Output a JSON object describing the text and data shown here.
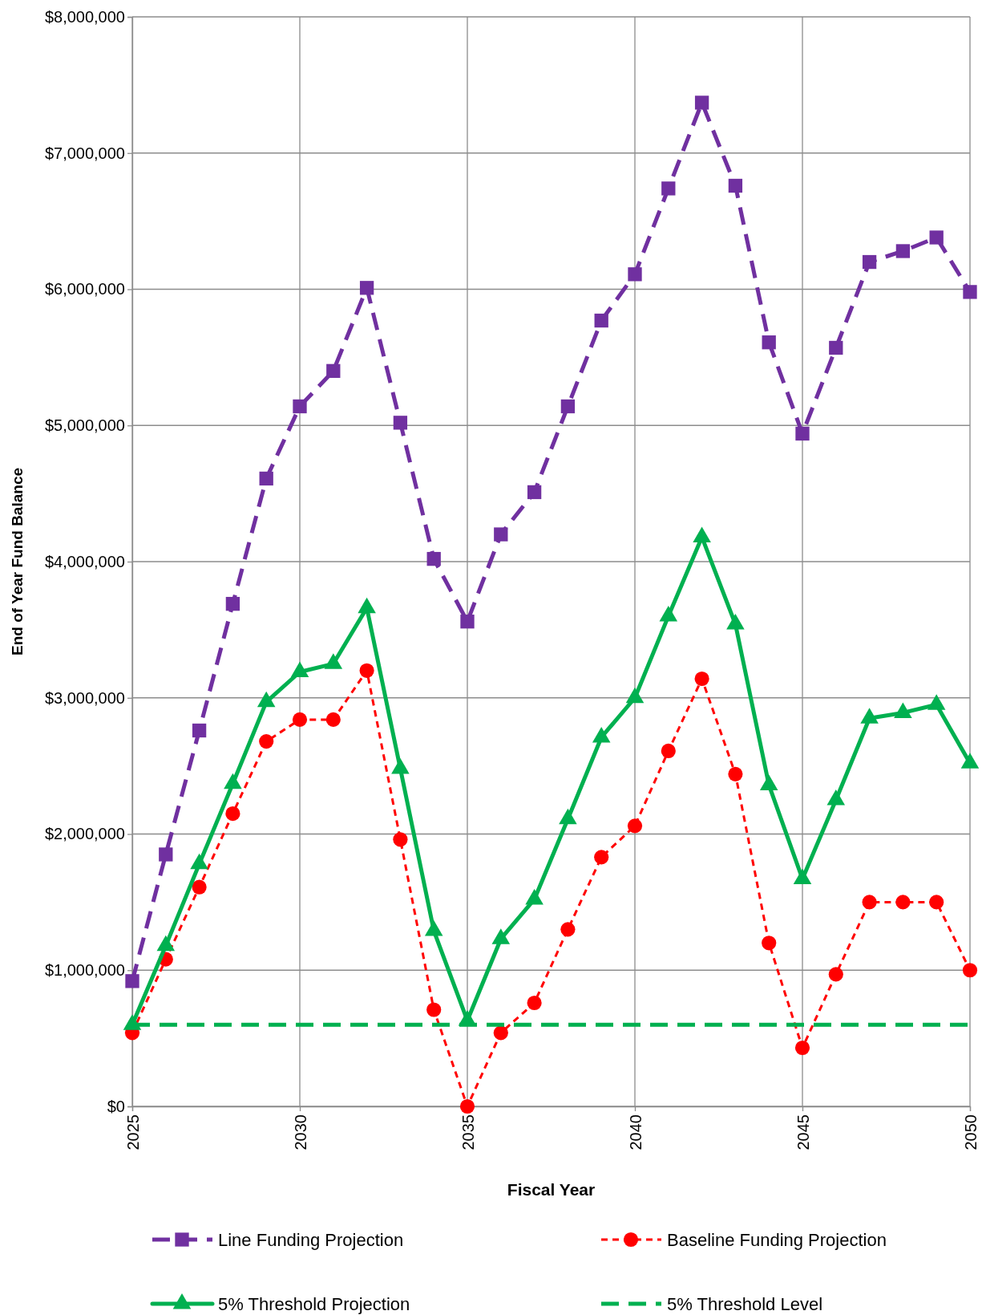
{
  "chart_data": {
    "type": "line",
    "xlabel": "Fiscal Year",
    "ylabel": "End of Year Fund Balance",
    "x": [
      2025,
      2026,
      2027,
      2028,
      2029,
      2030,
      2031,
      2032,
      2033,
      2034,
      2035,
      2036,
      2037,
      2038,
      2039,
      2040,
      2041,
      2042,
      2043,
      2044,
      2045,
      2046,
      2047,
      2048,
      2049,
      2050
    ],
    "series": [
      {
        "name": "Line Funding Projection",
        "color": "#7030a0",
        "marker": "square",
        "line_style": "dashed",
        "values": [
          920000,
          1850000,
          2760000,
          3690000,
          4610000,
          5140000,
          5400000,
          6010000,
          5020000,
          4020000,
          3560000,
          4200000,
          4510000,
          5140000,
          5770000,
          6110000,
          6740000,
          7370000,
          6760000,
          5610000,
          4940000,
          5570000,
          6200000,
          6280000,
          6380000,
          5980000
        ]
      },
      {
        "name": "Baseline Funding Projection",
        "color": "#ff0000",
        "marker": "circle",
        "line_style": "dotted",
        "values": [
          540000,
          1080000,
          1610000,
          2150000,
          2680000,
          2840000,
          2840000,
          3200000,
          1960000,
          710000,
          0,
          540000,
          760000,
          1300000,
          1830000,
          2060000,
          2610000,
          3140000,
          2440000,
          1200000,
          430000,
          970000,
          1500000,
          1500000,
          1500000,
          1000000
        ]
      },
      {
        "name": "5% Threshold Projection",
        "color": "#00b050",
        "marker": "triangle",
        "line_style": "solid",
        "values": [
          600000,
          1180000,
          1780000,
          2370000,
          2970000,
          3190000,
          3250000,
          3660000,
          2480000,
          1290000,
          630000,
          1230000,
          1520000,
          2110000,
          2710000,
          3000000,
          3600000,
          4180000,
          3540000,
          2360000,
          1670000,
          2250000,
          2850000,
          2890000,
          2950000,
          2520000
        ]
      },
      {
        "name": "5% Threshold Level",
        "color": "#00b050",
        "marker": "none",
        "line_style": "dashed",
        "values": [
          600000,
          600000,
          600000,
          600000,
          600000,
          600000,
          600000,
          600000,
          600000,
          600000,
          600000,
          600000,
          600000,
          600000,
          600000,
          600000,
          600000,
          600000,
          600000,
          600000,
          600000,
          600000,
          600000,
          600000,
          600000,
          600000
        ]
      }
    ],
    "xlim": [
      2025,
      2050
    ],
    "xticks": [
      2025,
      2030,
      2035,
      2040,
      2045,
      2050
    ],
    "ylim": [
      0,
      8000000
    ],
    "yticks": [
      {
        "value": 0,
        "label": "$0"
      },
      {
        "value": 1000000,
        "label": "$1,000,000"
      },
      {
        "value": 2000000,
        "label": "$2,000,000"
      },
      {
        "value": 3000000,
        "label": "$3,000,000"
      },
      {
        "value": 4000000,
        "label": "$4,000,000"
      },
      {
        "value": 5000000,
        "label": "$5,000,000"
      },
      {
        "value": 6000000,
        "label": "$6,000,000"
      },
      {
        "value": 7000000,
        "label": "$7,000,000"
      },
      {
        "value": 8000000,
        "label": "$8,000,000"
      }
    ],
    "grid": true,
    "legend": "bottom"
  }
}
